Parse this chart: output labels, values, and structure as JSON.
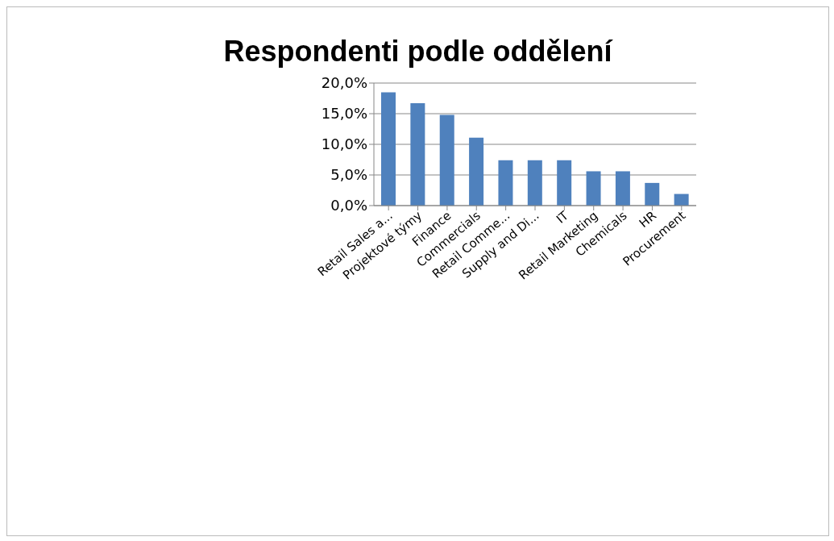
{
  "chart_data": {
    "type": "bar",
    "title": "Respondenti podle oddělení",
    "categories": [
      "Retail Sales a...",
      "Projektové týmy",
      "Finance",
      "Commercials",
      "Retail Comme...",
      "Supply and Di...",
      "IT",
      "Retail Marketing",
      "Chemicals",
      "HR",
      "Procurement"
    ],
    "values": [
      18.5,
      16.7,
      14.8,
      11.1,
      7.4,
      7.4,
      7.4,
      5.6,
      5.6,
      3.7,
      1.9
    ],
    "color": "#4f81bd",
    "ylim": [
      0,
      20
    ],
    "yticks": [
      {
        "value": 0,
        "label": "0,0%"
      },
      {
        "value": 5,
        "label": "5,0%"
      },
      {
        "value": 10,
        "label": "10,0%"
      },
      {
        "value": 15,
        "label": "15,0%"
      },
      {
        "value": 20,
        "label": "20,0%"
      }
    ],
    "grid": "y"
  }
}
